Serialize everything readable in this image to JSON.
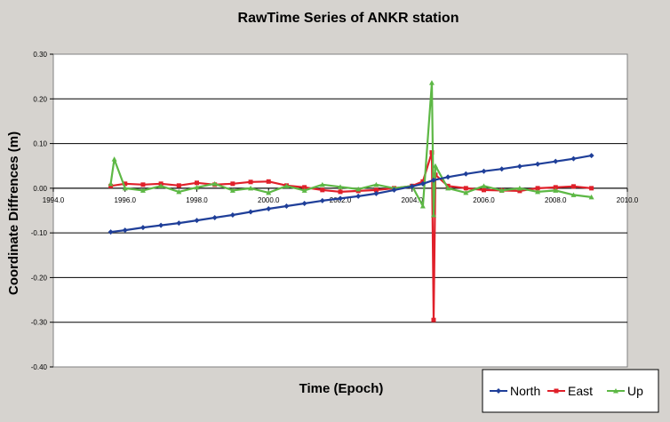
{
  "chart_data": {
    "type": "line",
    "title": "RawTime Series of ANKR station",
    "xlabel": "Time (Epoch)",
    "ylabel": "Coordinate Diffrences (m)",
    "xlim": [
      1994.0,
      2010.0
    ],
    "ylim": [
      -0.4,
      0.3
    ],
    "x_ticks": [
      "1994.0",
      "1996.0",
      "1998.0",
      "2000.0",
      "2002.0",
      "2004.0",
      "2006.0",
      "2008.0",
      "2010.0"
    ],
    "x_tick_values": [
      1994,
      1996,
      1998,
      2000,
      2002,
      2004,
      2006,
      2008,
      2010
    ],
    "y_ticks": [
      "0.30",
      "0.20",
      "0.10",
      "0.00",
      "-0.10",
      "-0.20",
      "-0.30",
      "-0.40"
    ],
    "y_tick_values": [
      0.3,
      0.2,
      0.1,
      0.0,
      -0.1,
      -0.2,
      -0.3,
      -0.4
    ],
    "grid": true,
    "legend_position": "bottom-right",
    "series": [
      {
        "name": "North",
        "color": "#1f3f99",
        "x": [
          1995.6,
          1996.0,
          1996.5,
          1997.0,
          1997.5,
          1998.0,
          1998.5,
          1999.0,
          1999.5,
          2000.0,
          2000.5,
          2001.0,
          2001.5,
          2002.0,
          2002.5,
          2003.0,
          2003.5,
          2004.0,
          2004.3,
          2004.6,
          2005.0,
          2005.5,
          2006.0,
          2006.5,
          2007.0,
          2007.5,
          2008.0,
          2008.5,
          2009.0
        ],
        "y": [
          -0.098,
          -0.094,
          -0.088,
          -0.083,
          -0.078,
          -0.072,
          -0.066,
          -0.06,
          -0.053,
          -0.046,
          -0.04,
          -0.034,
          -0.028,
          -0.023,
          -0.018,
          -0.012,
          -0.004,
          0.004,
          0.01,
          0.018,
          0.025,
          0.032,
          0.038,
          0.043,
          0.049,
          0.054,
          0.06,
          0.066,
          0.073
        ]
      },
      {
        "name": "East",
        "color": "#e0202a",
        "x": [
          1995.6,
          1996.0,
          1996.5,
          1997.0,
          1997.5,
          1998.0,
          1998.5,
          1999.0,
          1999.5,
          2000.0,
          2000.5,
          2001.0,
          2001.5,
          2002.0,
          2002.5,
          2003.0,
          2003.5,
          2004.0,
          2004.3,
          2004.55,
          2004.6,
          2004.65,
          2005.0,
          2005.5,
          2006.0,
          2006.5,
          2007.0,
          2007.5,
          2008.0,
          2008.5,
          2009.0
        ],
        "y": [
          0.005,
          0.01,
          0.008,
          0.01,
          0.006,
          0.012,
          0.008,
          0.01,
          0.014,
          0.015,
          0.006,
          0.002,
          -0.004,
          -0.008,
          -0.006,
          -0.004,
          0.0,
          0.005,
          0.015,
          0.08,
          -0.295,
          0.03,
          0.005,
          0.0,
          -0.004,
          -0.005,
          -0.006,
          0.0,
          0.002,
          0.004,
          0.0
        ]
      },
      {
        "name": "Up",
        "color": "#5db845",
        "x": [
          1995.6,
          1995.7,
          1996.0,
          1996.5,
          1997.0,
          1997.5,
          1998.0,
          1998.5,
          1999.0,
          1999.5,
          2000.0,
          2000.5,
          2001.0,
          2001.5,
          2002.0,
          2002.5,
          2003.0,
          2003.5,
          2004.0,
          2004.3,
          2004.55,
          2004.6,
          2004.65,
          2005.0,
          2005.5,
          2006.0,
          2006.5,
          2007.0,
          2007.5,
          2008.0,
          2008.5,
          2009.0
        ],
        "y": [
          0.01,
          0.065,
          0.0,
          -0.005,
          0.005,
          -0.008,
          0.002,
          0.01,
          -0.005,
          0.0,
          -0.01,
          0.005,
          -0.005,
          0.008,
          0.003,
          -0.002,
          0.008,
          0.0,
          0.005,
          -0.04,
          0.236,
          -0.06,
          0.05,
          0.0,
          -0.01,
          0.005,
          -0.005,
          0.0,
          -0.008,
          -0.005,
          -0.015,
          -0.02
        ]
      }
    ]
  }
}
